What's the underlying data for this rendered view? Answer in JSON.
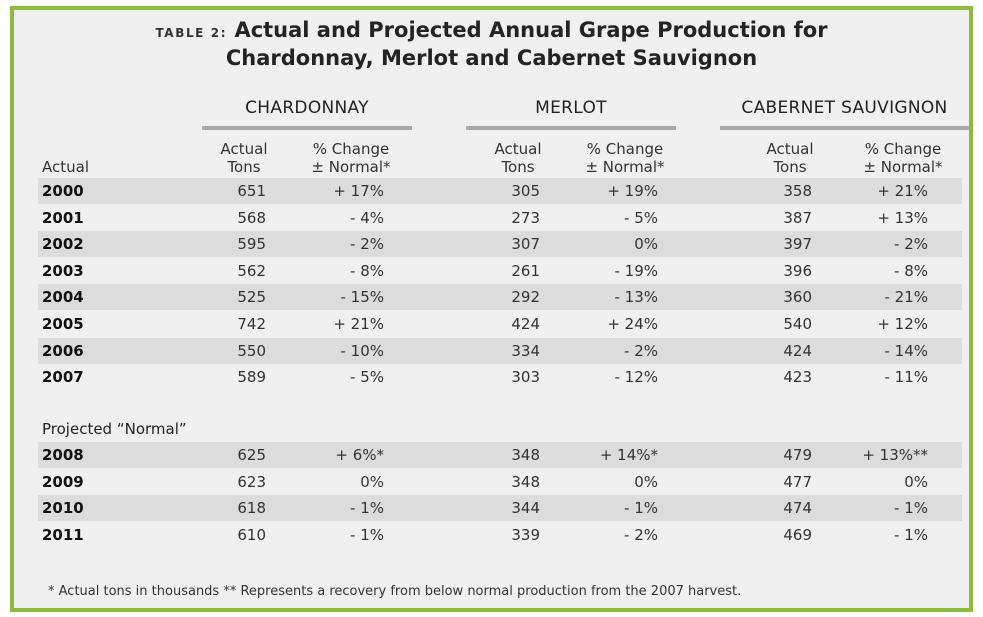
{
  "title": {
    "label": "TABLE 2:",
    "line1": "Actual and Projected Annual Grape Production for",
    "line2": "Chardonnay, Merlot and Cabernet Sauvignon"
  },
  "groups": [
    "CHARDONNAY",
    "MERLOT",
    "CABERNET SAUVIGNON"
  ],
  "col_headers": {
    "tons_line1": "Actual",
    "tons_line2": "Tons",
    "pct_line1": "% Change",
    "pct_line2": "± Normal*",
    "row_label": "Actual"
  },
  "actual_rows": [
    {
      "year": "2000",
      "c_tons": "651",
      "c_pct": "+ 17%",
      "m_tons": "305",
      "m_pct": "+ 19%",
      "cs_tons": "358",
      "cs_pct": "+ 21%"
    },
    {
      "year": "2001",
      "c_tons": "568",
      "c_pct": "- 4%",
      "m_tons": "273",
      "m_pct": "- 5%",
      "cs_tons": "387",
      "cs_pct": "+ 13%"
    },
    {
      "year": "2002",
      "c_tons": "595",
      "c_pct": "- 2%",
      "m_tons": "307",
      "m_pct": "0%",
      "cs_tons": "397",
      "cs_pct": "- 2%"
    },
    {
      "year": "2003",
      "c_tons": "562",
      "c_pct": "- 8%",
      "m_tons": "261",
      "m_pct": "- 19%",
      "cs_tons": "396",
      "cs_pct": "- 8%"
    },
    {
      "year": "2004",
      "c_tons": "525",
      "c_pct": "- 15%",
      "m_tons": "292",
      "m_pct": "- 13%",
      "cs_tons": "360",
      "cs_pct": "- 21%"
    },
    {
      "year": "2005",
      "c_tons": "742",
      "c_pct": "+ 21%",
      "m_tons": "424",
      "m_pct": "+ 24%",
      "cs_tons": "540",
      "cs_pct": "+ 12%"
    },
    {
      "year": "2006",
      "c_tons": "550",
      "c_pct": "- 10%",
      "m_tons": "334",
      "m_pct": "- 2%",
      "cs_tons": "424",
      "cs_pct": "- 14%"
    },
    {
      "year": "2007",
      "c_tons": "589",
      "c_pct": "- 5%",
      "m_tons": "303",
      "m_pct": "- 12%",
      "cs_tons": "423",
      "cs_pct": "- 11%"
    }
  ],
  "projected_label": "Projected “Normal”",
  "projected_rows": [
    {
      "year": "2008",
      "c_tons": "625",
      "c_pct": "+ 6%*",
      "m_tons": "348",
      "m_pct": "+ 14%*",
      "cs_tons": "479",
      "cs_pct": "+ 13%**"
    },
    {
      "year": "2009",
      "c_tons": "623",
      "c_pct": "0%",
      "m_tons": "348",
      "m_pct": "0%",
      "cs_tons": "477",
      "cs_pct": "0%"
    },
    {
      "year": "2010",
      "c_tons": "618",
      "c_pct": "- 1%",
      "m_tons": "344",
      "m_pct": "- 1%",
      "cs_tons": "474",
      "cs_pct": "- 1%"
    },
    {
      "year": "2011",
      "c_tons": "610",
      "c_pct": "- 1%",
      "m_tons": "339",
      "m_pct": "- 2%",
      "cs_tons": "469",
      "cs_pct": "- 1%"
    }
  ],
  "footnote": "* Actual tons in thousands    ** Represents a recovery from below normal production from the 2007 harvest."
}
